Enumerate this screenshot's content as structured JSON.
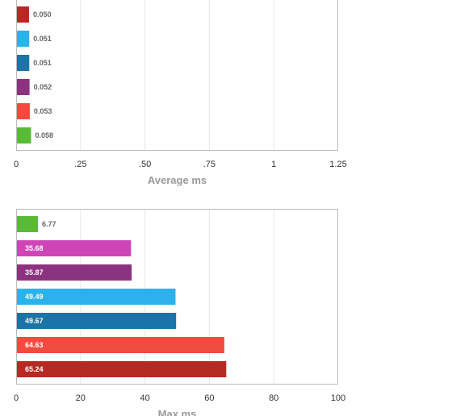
{
  "chart_data": [
    {
      "type": "bar",
      "orientation": "horizontal",
      "xlabel": "Average ms",
      "xlim": [
        0,
        1.25
      ],
      "xticks": [
        0,
        0.25,
        0.5,
        0.75,
        1,
        1.25
      ],
      "xtick_labels": [
        "0",
        ".25",
        ".50",
        ".75",
        "1",
        "1.25"
      ],
      "grid": true,
      "bars": [
        {
          "value": 0.05,
          "label": "0.050",
          "color": "#b52a23"
        },
        {
          "value": 0.051,
          "label": "0.051",
          "color": "#2bb2ec"
        },
        {
          "value": 0.051,
          "label": "0.051",
          "color": "#1c73a5"
        },
        {
          "value": 0.052,
          "label": "0.052",
          "color": "#8c3380"
        },
        {
          "value": 0.053,
          "label": "0.053",
          "color": "#ef4b3f"
        },
        {
          "value": 0.058,
          "label": "0.058",
          "color": "#5bba35"
        }
      ]
    },
    {
      "type": "bar",
      "orientation": "horizontal",
      "xlabel": "Max ms",
      "xlim": [
        0,
        100
      ],
      "xticks": [
        0,
        20,
        40,
        60,
        80,
        100
      ],
      "xtick_labels": [
        "0",
        "20",
        "40",
        "60",
        "80",
        "100"
      ],
      "grid": true,
      "bars": [
        {
          "value": 6.77,
          "label": "6.77",
          "color": "#5bba35"
        },
        {
          "value": 35.68,
          "label": "35.68",
          "color": "#cf45b7"
        },
        {
          "value": 35.87,
          "label": "35.87",
          "color": "#8c3380"
        },
        {
          "value": 49.49,
          "label": "49.49",
          "color": "#2bb2ec"
        },
        {
          "value": 49.67,
          "label": "49.67",
          "color": "#1c73a5"
        },
        {
          "value": 64.63,
          "label": "64.63",
          "color": "#ef4b3f"
        },
        {
          "value": 65.24,
          "label": "65.24",
          "color": "#b52a23"
        }
      ]
    }
  ]
}
